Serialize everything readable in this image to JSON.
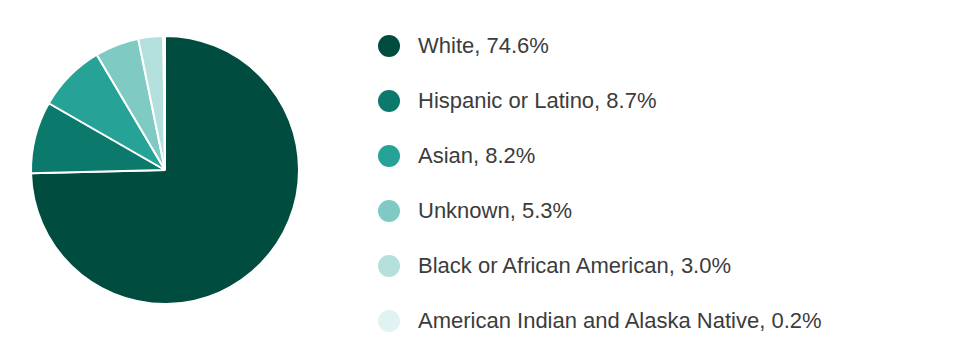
{
  "chart_data": {
    "type": "pie",
    "categories": [
      "White, 74.6%",
      "Hispanic or Latino, 8.7%",
      "Asian, 8.2%",
      "Unknown, 5.3%",
      "Black or African American, 3.0%",
      "American Indian and Alaska Native, 0.2%"
    ],
    "values": [
      74.6,
      8.7,
      8.2,
      5.3,
      3.0,
      0.2
    ],
    "colors": [
      "#004d40",
      "#0b7a6c",
      "#26a297",
      "#7fcbc3",
      "#b3e0dc",
      "#e0f2f1"
    ],
    "legend": "right",
    "data_labels": false
  }
}
